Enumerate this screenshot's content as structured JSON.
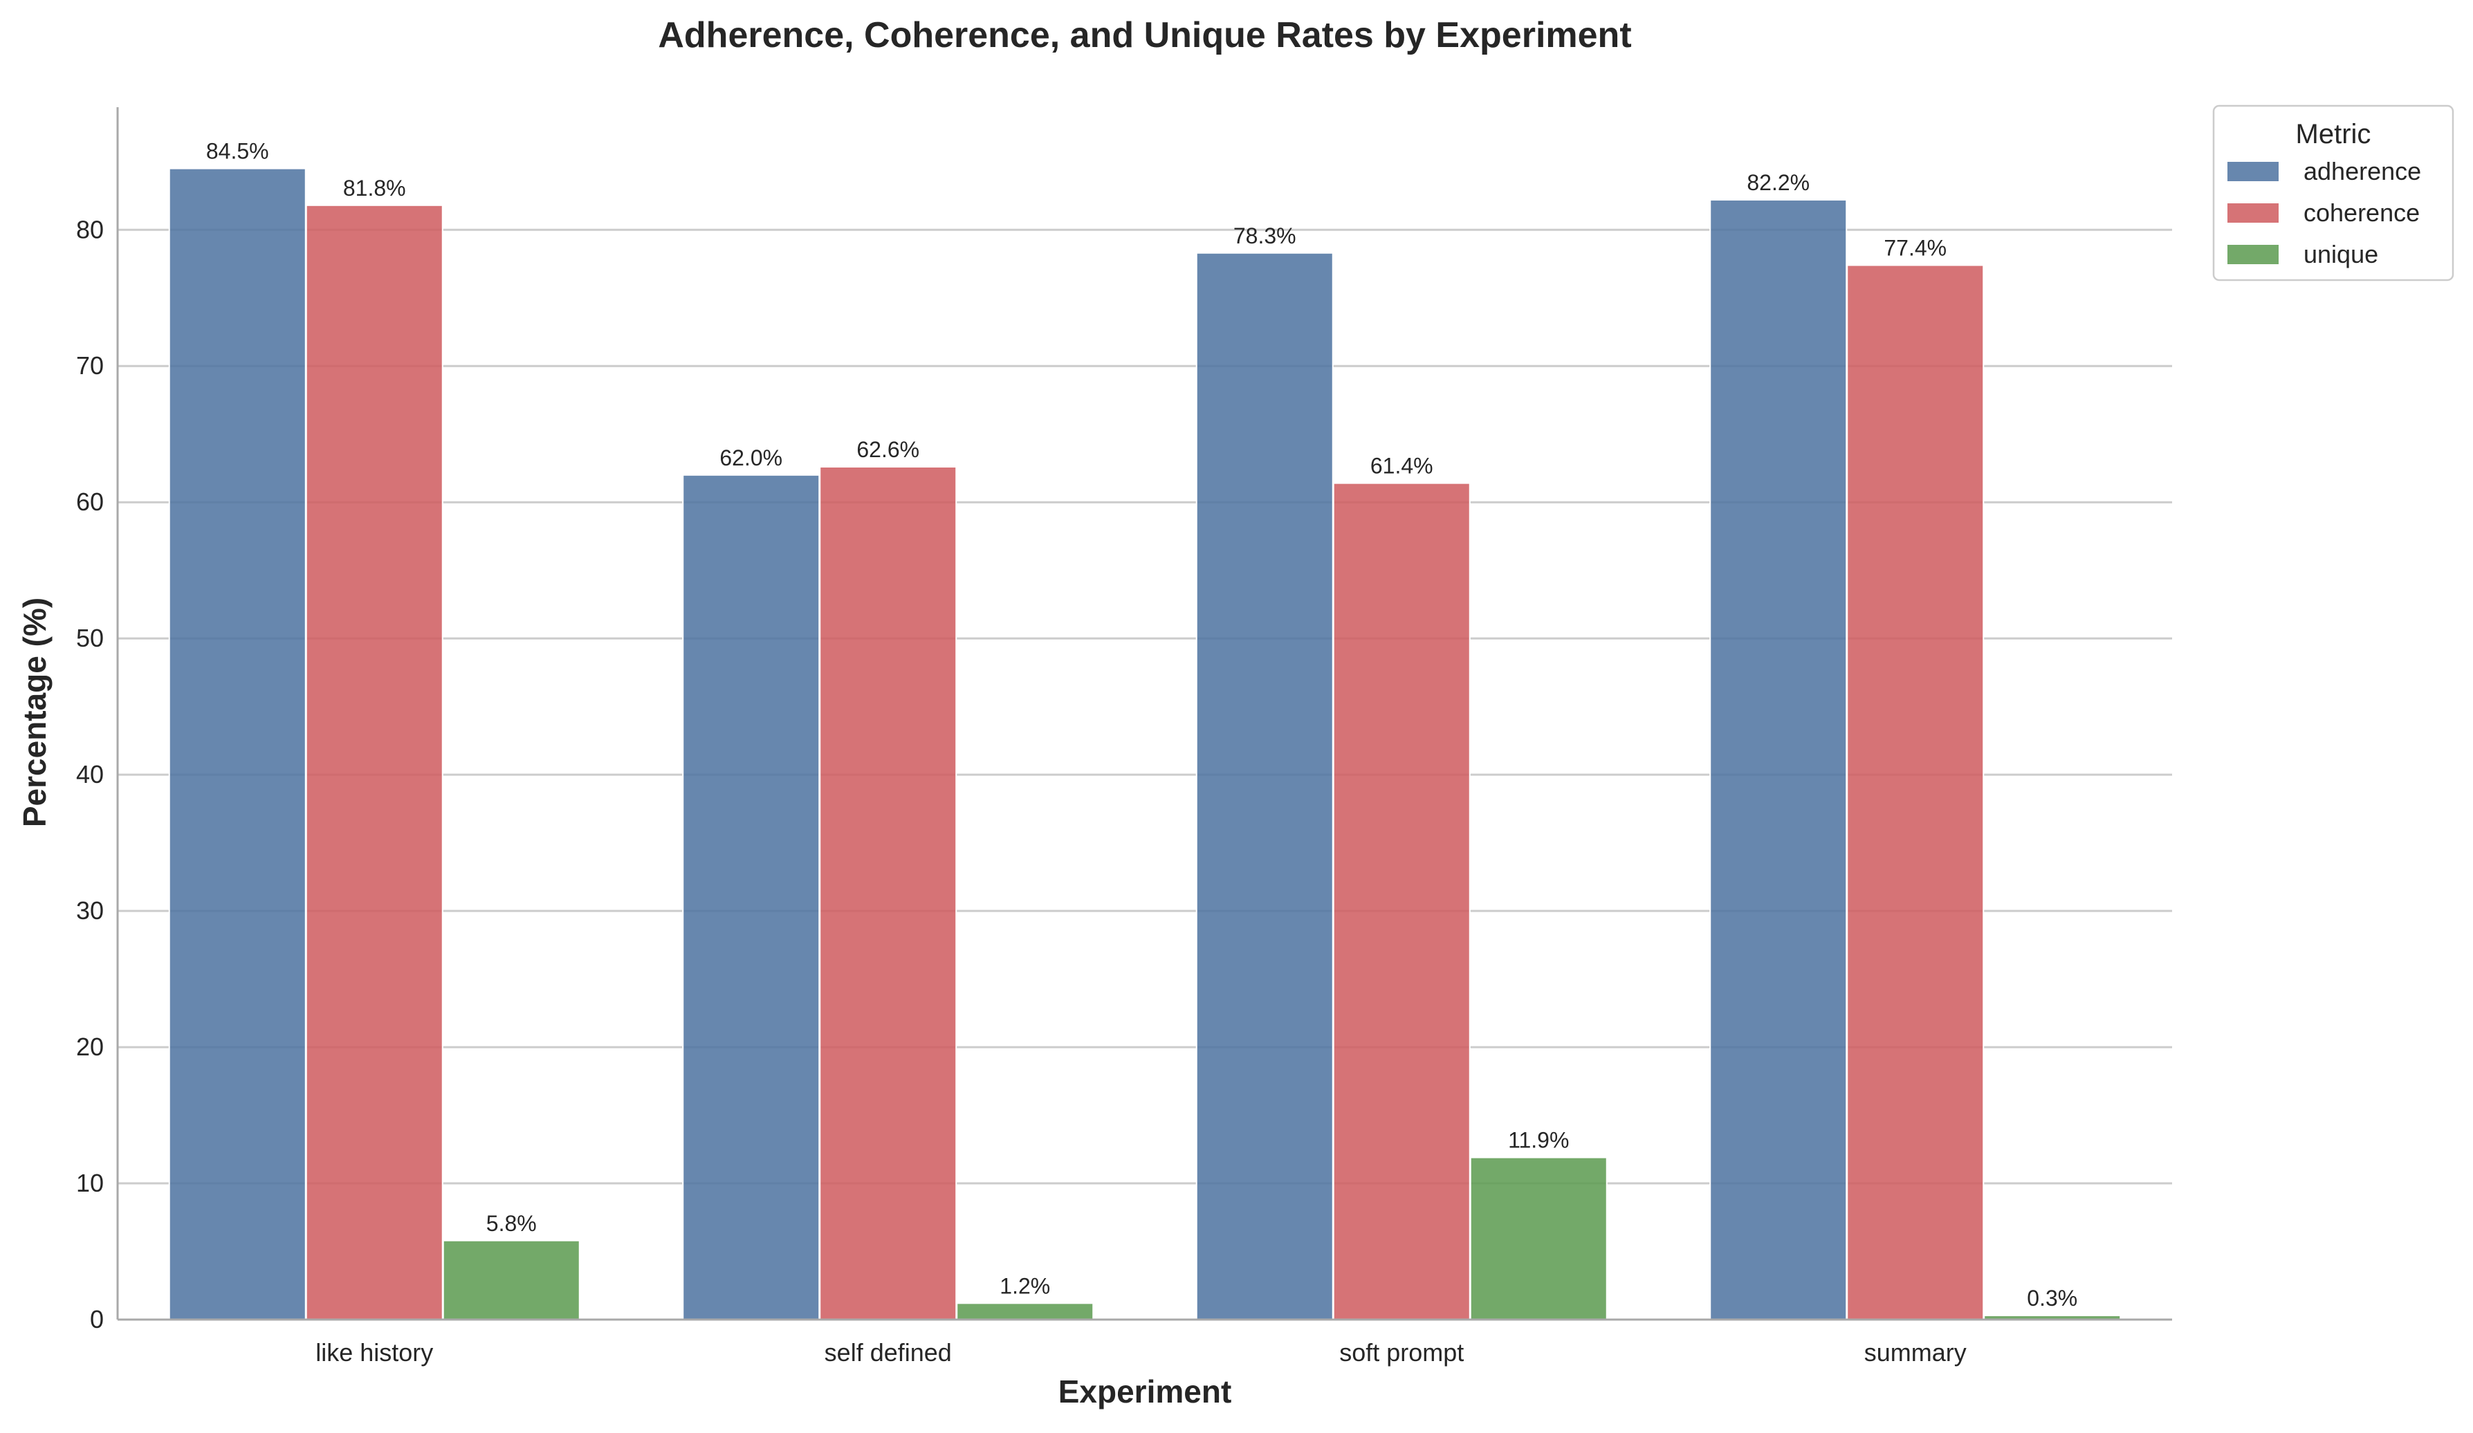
{
  "chart_data": {
    "type": "bar",
    "title": "Adherence, Coherence, and Unique Rates by Experiment",
    "xlabel": "Experiment",
    "ylabel": "Percentage (%)",
    "categories": [
      "like history",
      "self defined",
      "soft prompt",
      "summary"
    ],
    "ylim": [
      0,
      89
    ],
    "yticks": [
      0,
      10,
      20,
      30,
      40,
      50,
      60,
      70,
      80
    ],
    "grid": "horizontal",
    "legend_title": "Metric",
    "legend_position": "outside-top-right",
    "series": [
      {
        "name": "adherence",
        "color": "#4c72a0",
        "values": [
          84.5,
          62.0,
          78.3,
          82.2
        ],
        "labels": [
          "84.5%",
          "62.0%",
          "78.3%",
          "82.2%"
        ]
      },
      {
        "name": "coherence",
        "color": "#cf5a5e",
        "values": [
          81.8,
          62.6,
          61.4,
          77.4
        ],
        "labels": [
          "81.8%",
          "62.6%",
          "61.4%",
          "77.4%"
        ]
      },
      {
        "name": "unique",
        "color": "#5a9a4f",
        "values": [
          5.8,
          1.2,
          11.9,
          0.3
        ],
        "labels": [
          "5.8%",
          "1.2%",
          "11.9%",
          "0.3%"
        ]
      }
    ]
  }
}
